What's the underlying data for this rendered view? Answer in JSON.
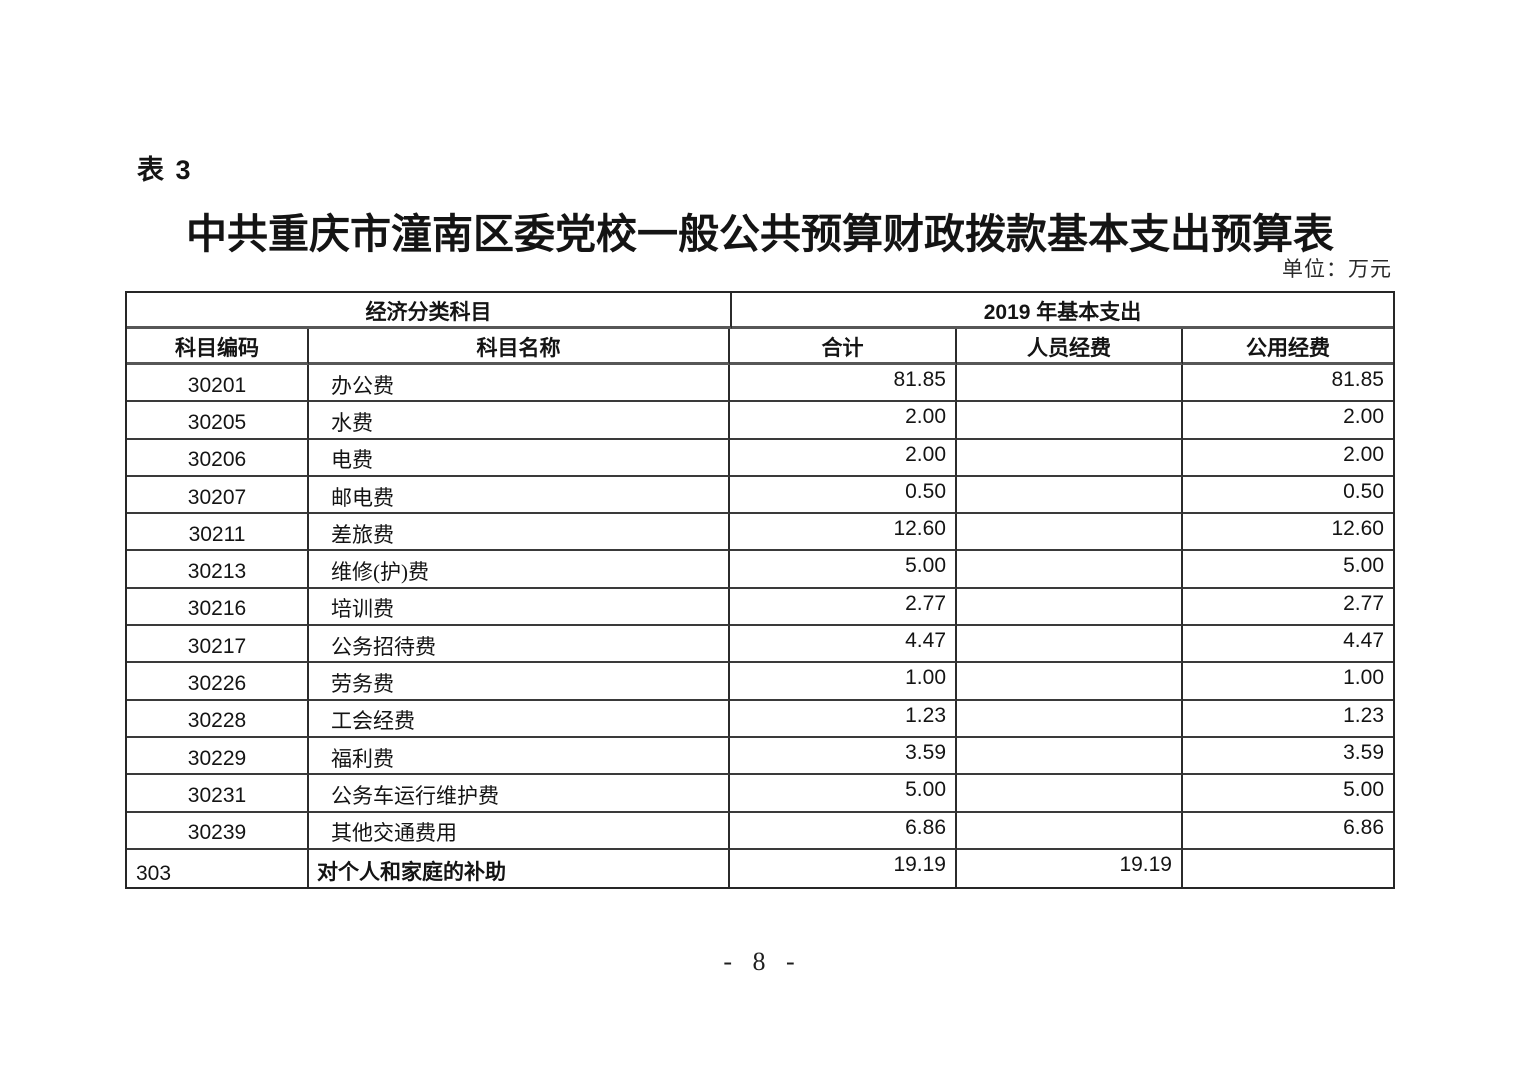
{
  "page": {
    "table_label": "表 3",
    "title": "中共重庆市潼南区委党校一般公共预算财政拨款基本支出预算表",
    "unit_note": "单位：万元",
    "page_number": "- 8 -"
  },
  "table": {
    "header": {
      "group_left": "经济分类科目",
      "group_right": "2019 年基本支出",
      "col_code": "科目编码",
      "col_name": "科目名称",
      "col_total": "合计",
      "col_personnel": "人员经费",
      "col_public": "公用经费"
    },
    "rows": [
      {
        "code": "30201",
        "name": "办公费",
        "total": "81.85",
        "personnel": "",
        "public": "81.85",
        "bold": false
      },
      {
        "code": "30205",
        "name": "水费",
        "total": "2.00",
        "personnel": "",
        "public": "2.00",
        "bold": false
      },
      {
        "code": "30206",
        "name": "电费",
        "total": "2.00",
        "personnel": "",
        "public": "2.00",
        "bold": false
      },
      {
        "code": "30207",
        "name": "邮电费",
        "total": "0.50",
        "personnel": "",
        "public": "0.50",
        "bold": false
      },
      {
        "code": "30211",
        "name": "差旅费",
        "total": "12.60",
        "personnel": "",
        "public": "12.60",
        "bold": false
      },
      {
        "code": "30213",
        "name": "维修(护)费",
        "total": "5.00",
        "personnel": "",
        "public": "5.00",
        "bold": false
      },
      {
        "code": "30216",
        "name": "培训费",
        "total": "2.77",
        "personnel": "",
        "public": "2.77",
        "bold": false
      },
      {
        "code": "30217",
        "name": "公务招待费",
        "total": "4.47",
        "personnel": "",
        "public": "4.47",
        "bold": false
      },
      {
        "code": "30226",
        "name": "劳务费",
        "total": "1.00",
        "personnel": "",
        "public": "1.00",
        "bold": false
      },
      {
        "code": "30228",
        "name": "工会经费",
        "total": "1.23",
        "personnel": "",
        "public": "1.23",
        "bold": false
      },
      {
        "code": "30229",
        "name": "福利费",
        "total": "3.59",
        "personnel": "",
        "public": "3.59",
        "bold": false
      },
      {
        "code": "30231",
        "name": "公务车运行维护费",
        "total": "5.00",
        "personnel": "",
        "public": "5.00",
        "bold": false
      },
      {
        "code": "30239",
        "name": "其他交通费用",
        "total": "6.86",
        "personnel": "",
        "public": "6.86",
        "bold": false
      },
      {
        "code": "303",
        "name": "对个人和家庭的补助",
        "total": "19.19",
        "personnel": "19.19",
        "public": "",
        "bold": true
      }
    ]
  }
}
